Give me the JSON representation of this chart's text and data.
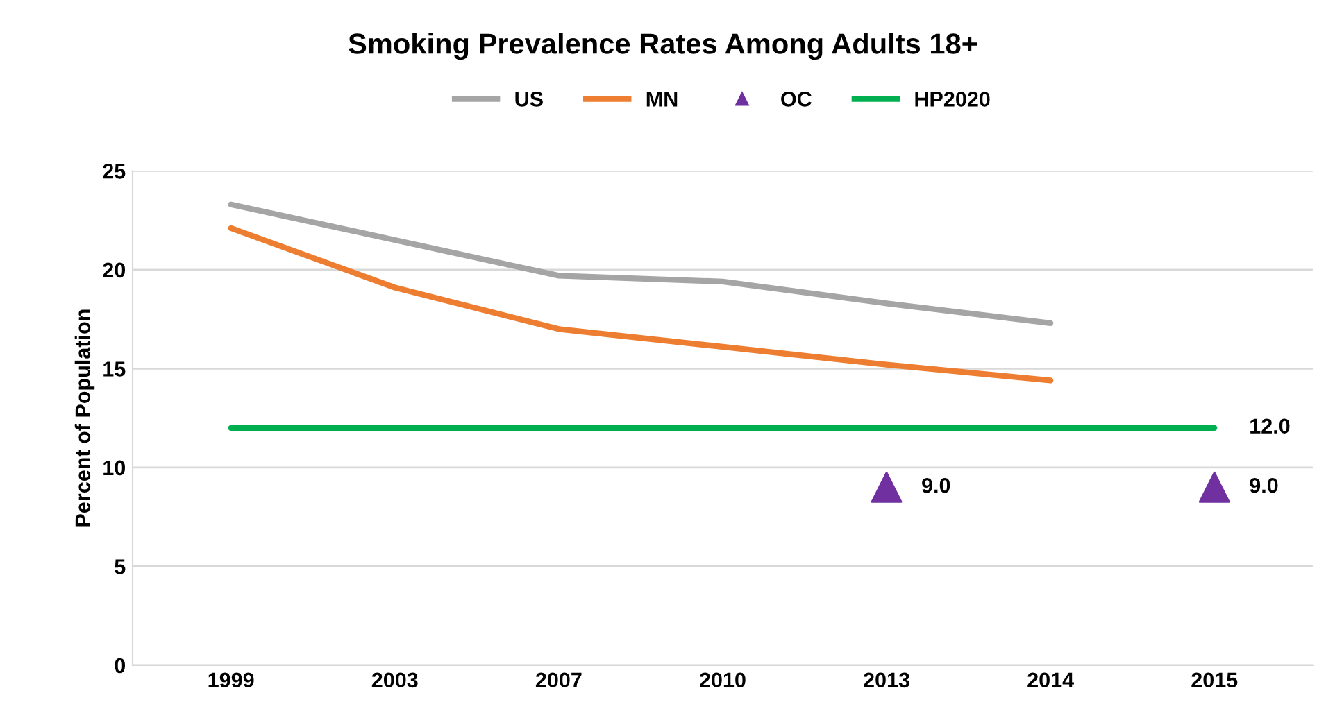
{
  "chart_data": {
    "type": "line",
    "title": "Smoking Prevalence Rates Among Adults 18+",
    "ylabel": "Percent of Population",
    "categories": [
      "1999",
      "2003",
      "2007",
      "2010",
      "2013",
      "2014",
      "2015"
    ],
    "series": [
      {
        "name": "US",
        "color": "#a5a5a5",
        "values": [
          23.3,
          21.5,
          19.7,
          19.4,
          18.3,
          17.3,
          null
        ]
      },
      {
        "name": "MN",
        "color": "#ed7d31",
        "values": [
          22.1,
          19.1,
          17.0,
          16.1,
          15.2,
          14.4,
          null
        ]
      },
      {
        "name": "OC",
        "type": "scatter",
        "marker": "triangle",
        "color": "#7030a0",
        "values": [
          null,
          null,
          null,
          null,
          9.0,
          null,
          9.0
        ],
        "value_labels": [
          null,
          null,
          null,
          null,
          "9.0",
          null,
          "9.0"
        ]
      },
      {
        "name": "HP2020",
        "color": "#00b050",
        "values": [
          12,
          12,
          12,
          12,
          12,
          12,
          12
        ],
        "value_labels": [
          null,
          null,
          null,
          null,
          null,
          null,
          "12.0"
        ]
      }
    ],
    "ylim": [
      0,
      25
    ],
    "yticks": [
      0,
      5,
      10,
      15,
      20,
      25
    ],
    "grid": "y",
    "legend": "top"
  }
}
